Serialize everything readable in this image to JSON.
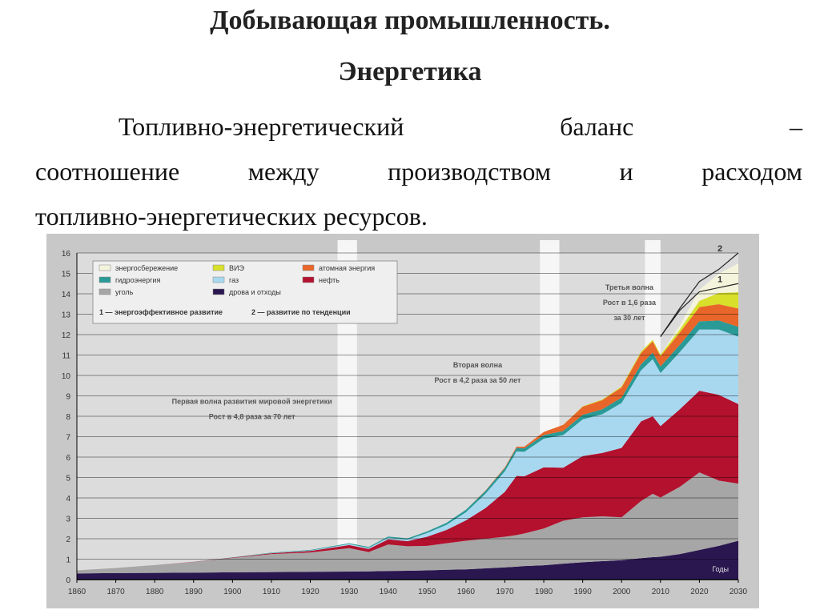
{
  "page": {
    "title_line1": "Добывающая промышленность.",
    "title_line2": "Энергетика",
    "paragraph": {
      "line1": [
        "Топливно-энергетический",
        "баланс",
        "–"
      ],
      "line2": [
        "соотношение",
        "между",
        "производством",
        "и",
        "расходом"
      ],
      "line3": "топливно-энергетических ресурсов."
    }
  },
  "chart_data": {
    "type": "area",
    "stacked": true,
    "x": [
      1860,
      1870,
      1880,
      1890,
      1900,
      1910,
      1920,
      1930,
      1935,
      1940,
      1945,
      1950,
      1955,
      1960,
      1965,
      1970,
      1973,
      1975,
      1980,
      1985,
      1990,
      1995,
      2000,
      2005,
      2008,
      2010,
      2015,
      2020,
      2025,
      2030
    ],
    "series": [
      {
        "name": "дрова и отходы",
        "color": "#2a1750",
        "values": [
          0.3,
          0.32,
          0.33,
          0.34,
          0.36,
          0.37,
          0.38,
          0.39,
          0.4,
          0.42,
          0.43,
          0.45,
          0.48,
          0.5,
          0.55,
          0.6,
          0.63,
          0.66,
          0.7,
          0.78,
          0.85,
          0.9,
          0.95,
          1.05,
          1.1,
          1.12,
          1.25,
          1.45,
          1.65,
          1.9
        ]
      },
      {
        "name": "уголь",
        "color": "#a6a6a6",
        "values": [
          0.15,
          0.25,
          0.38,
          0.52,
          0.7,
          0.88,
          0.95,
          1.15,
          0.95,
          1.3,
          1.2,
          1.2,
          1.3,
          1.4,
          1.45,
          1.5,
          1.55,
          1.6,
          1.8,
          2.1,
          2.2,
          2.2,
          2.1,
          2.8,
          3.1,
          2.9,
          3.3,
          3.8,
          3.2,
          2.8
        ]
      },
      {
        "name": "нефть",
        "color": "#b3112e",
        "values": [
          0,
          0,
          0,
          0.01,
          0.02,
          0.04,
          0.07,
          0.15,
          0.15,
          0.25,
          0.25,
          0.45,
          0.65,
          1.0,
          1.5,
          2.2,
          2.9,
          2.8,
          3.0,
          2.6,
          3.0,
          3.1,
          3.4,
          3.9,
          3.8,
          3.5,
          3.8,
          4.0,
          4.2,
          3.9
        ]
      },
      {
        "name": "газ",
        "color": "#a8d8f0",
        "values": [
          0,
          0,
          0,
          0,
          0,
          0.01,
          0.02,
          0.05,
          0.05,
          0.08,
          0.08,
          0.18,
          0.25,
          0.4,
          0.7,
          1.0,
          1.2,
          1.2,
          1.4,
          1.6,
          1.8,
          1.9,
          2.2,
          2.5,
          2.8,
          2.6,
          2.8,
          3.0,
          3.2,
          3.3
        ]
      },
      {
        "name": "гидроэнергия",
        "color": "#2a9a96",
        "values": [
          0,
          0,
          0,
          0,
          0.01,
          0.02,
          0.03,
          0.04,
          0.05,
          0.06,
          0.06,
          0.08,
          0.1,
          0.12,
          0.14,
          0.16,
          0.17,
          0.17,
          0.18,
          0.2,
          0.22,
          0.24,
          0.26,
          0.3,
          0.32,
          0.32,
          0.36,
          0.4,
          0.44,
          0.48
        ]
      },
      {
        "name": "атомная энергия",
        "color": "#e8662a",
        "values": [
          0,
          0,
          0,
          0,
          0,
          0,
          0,
          0,
          0,
          0,
          0,
          0,
          0,
          0,
          0.02,
          0.04,
          0.06,
          0.08,
          0.15,
          0.3,
          0.4,
          0.45,
          0.5,
          0.55,
          0.55,
          0.5,
          0.6,
          0.7,
          0.8,
          0.9
        ]
      },
      {
        "name": "ВИЭ",
        "color": "#d8e02a",
        "values": [
          0,
          0,
          0,
          0,
          0,
          0,
          0,
          0,
          0,
          0,
          0,
          0,
          0,
          0,
          0,
          0,
          0,
          0,
          0,
          0,
          0.02,
          0.03,
          0.05,
          0.07,
          0.08,
          0.08,
          0.15,
          0.3,
          0.55,
          0.8
        ]
      },
      {
        "name": "энергосбережение",
        "color": "#f4f4dc",
        "values": [
          0,
          0,
          0,
          0,
          0,
          0,
          0,
          0,
          0,
          0,
          0,
          0,
          0,
          0,
          0,
          0,
          0,
          0,
          0,
          0,
          0,
          0,
          0,
          0,
          0,
          0,
          0.2,
          0.55,
          0.95,
          1.4
        ]
      }
    ],
    "scenario_lines": [
      {
        "label": "1",
        "name": "энергоэффективное развитие",
        "x": [
          2010,
          2015,
          2020,
          2025,
          2030
        ],
        "values": [
          11.9,
          13.2,
          14.1,
          14.3,
          14.5
        ]
      },
      {
        "label": "2",
        "name": "развитие по тенденции",
        "x": [
          2010,
          2015,
          2020,
          2025,
          2030
        ],
        "values": [
          11.9,
          13.3,
          14.6,
          15.2,
          16.0
        ]
      }
    ],
    "xlim": [
      1860,
      2030
    ],
    "ylim": [
      0,
      16
    ],
    "xticks": [
      1860,
      1870,
      1880,
      1890,
      1900,
      1910,
      1920,
      1930,
      1940,
      1950,
      1960,
      1970,
      1980,
      1990,
      2000,
      2010,
      2020,
      2030
    ],
    "yticks": [
      0,
      1,
      2,
      3,
      4,
      5,
      6,
      7,
      8,
      9,
      10,
      11,
      12,
      13,
      14,
      15,
      16
    ],
    "bands": [
      [
        1927,
        1932
      ],
      [
        1979,
        1984
      ],
      [
        2006,
        2010
      ]
    ],
    "legend": [
      {
        "label": "энергосбережение",
        "color": "#f4f4dc"
      },
      {
        "label": "ВИЭ",
        "color": "#d8e02a"
      },
      {
        "label": "атомная энергия",
        "color": "#e8662a"
      },
      {
        "label": "гидроэнергия",
        "color": "#2a9a96"
      },
      {
        "label": "газ",
        "color": "#a8d8f0"
      },
      {
        "label": "нефть",
        "color": "#b3112e"
      },
      {
        "label": "уголь",
        "color": "#a6a6a6"
      },
      {
        "label": "дрова и отходы",
        "color": "#2a1750"
      }
    ],
    "legend_notes": [
      "1 — энергоэффективное развитие",
      "2 — развитие по тенденции"
    ],
    "annotations": [
      {
        "lines": [
          "Первая волна развития мировой энергетики",
          "Рост в 4,8 раза за 70 лет"
        ]
      },
      {
        "lines": [
          "Вторая волна",
          "Рост в 4,2 раза за 50 лет"
        ]
      },
      {
        "lines": [
          "Третья волна",
          "Рост в 1,6 раза",
          "за 30 лет"
        ]
      }
    ],
    "x_axis_unit": "Годы",
    "grid": true,
    "legend_position": "top-left"
  }
}
